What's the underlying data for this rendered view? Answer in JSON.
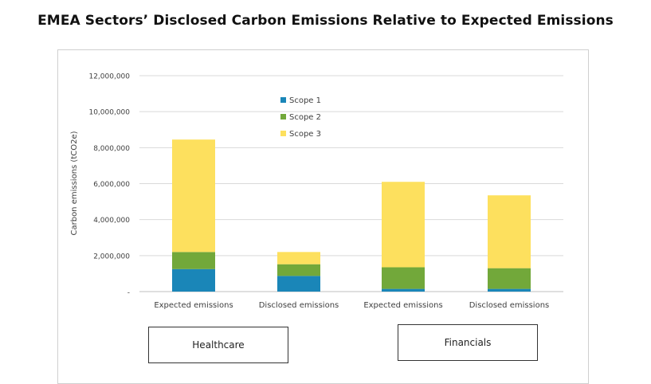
{
  "title": "EMEA Sectors’ Disclosed Carbon Emissions Relative to Expected Emissions",
  "groups": [
    "Healthcare",
    "Financials"
  ],
  "chart_data": {
    "type": "bar",
    "stacked": true,
    "categories": [
      "Expected emissions",
      "Disclosed emissions",
      "Expected emissions",
      "Disclosed emissions"
    ],
    "series": [
      {
        "name": "Scope 1",
        "color": "#1a86b8",
        "values": [
          1250000,
          870000,
          150000,
          150000
        ]
      },
      {
        "name": "Scope 2",
        "color": "#72a83a",
        "values": [
          950000,
          650000,
          1200000,
          1150000
        ]
      },
      {
        "name": "Scope 3",
        "color": "#fde05e",
        "values": [
          6250000,
          680000,
          4750000,
          4050000
        ]
      }
    ],
    "ylabel": "Carbon emissions (tCO2e)",
    "ylim": [
      0,
      12000000
    ],
    "yticks": [
      0,
      2000000,
      4000000,
      6000000,
      8000000,
      10000000,
      12000000
    ],
    "ytick_labels": [
      "-",
      "2,000,000",
      "4,000,000",
      "6,000,000",
      "8,000,000",
      "10,000,000",
      "12,000,000"
    ],
    "grid": true,
    "legend_position": "top-center"
  }
}
